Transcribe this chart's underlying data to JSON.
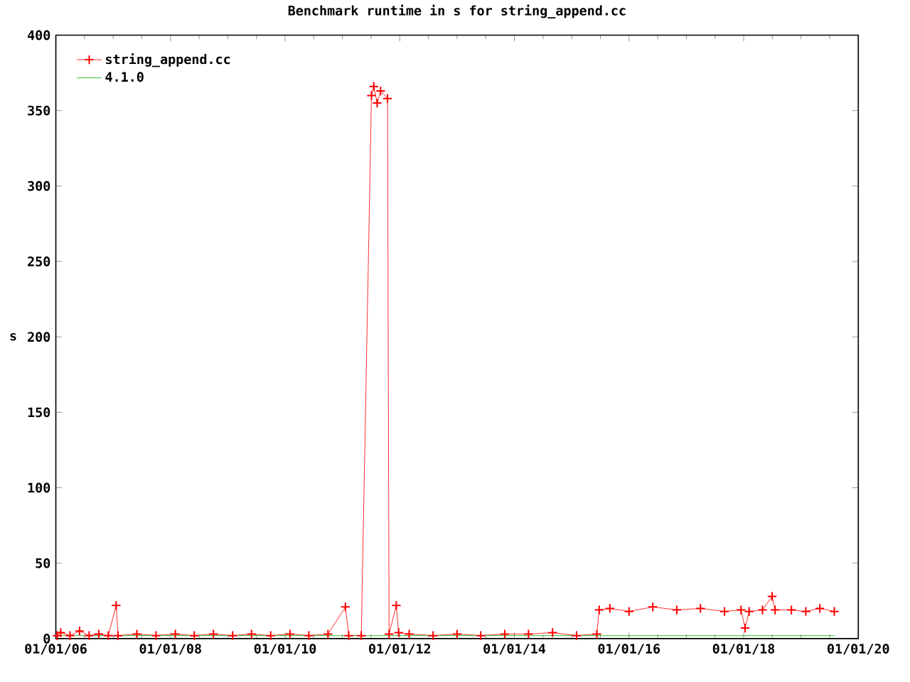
{
  "chart_data": {
    "type": "line",
    "title": "Benchmark runtime in s for string_append.cc",
    "ylabel": "s",
    "legend": "top left",
    "grid": false,
    "xlim": [
      "2006-01-01",
      "2020-01-01"
    ],
    "xticks": [
      {
        "value": "2006-01-01",
        "label": "01/01/06"
      },
      {
        "value": "2008-01-01",
        "label": "01/01/08"
      },
      {
        "value": "2010-01-01",
        "label": "01/01/10"
      },
      {
        "value": "2012-01-01",
        "label": "01/01/12"
      },
      {
        "value": "2014-01-01",
        "label": "01/01/14"
      },
      {
        "value": "2016-01-01",
        "label": "01/01/16"
      },
      {
        "value": "2018-01-01",
        "label": "01/01/18"
      },
      {
        "value": "2020-01-01",
        "label": "01/01/20"
      }
    ],
    "ylim": [
      0,
      400
    ],
    "yticks": [
      0,
      50,
      100,
      150,
      200,
      250,
      300,
      350,
      400
    ],
    "series": [
      {
        "name": "string_append.cc",
        "color": "#ff0000",
        "marker": "cross",
        "x": [
          "2006-01-10",
          "2006-02-01",
          "2006-04-01",
          "2006-06-01",
          "2006-08-01",
          "2006-10-01",
          "2006-12-01",
          "2007-01-20",
          "2007-02-01",
          "2007-06-01",
          "2007-10-01",
          "2008-02-01",
          "2008-06-01",
          "2008-10-01",
          "2009-02-01",
          "2009-06-01",
          "2009-10-01",
          "2010-02-01",
          "2010-06-01",
          "2010-10-01",
          "2011-01-20",
          "2011-02-10",
          "2011-05-01",
          "2011-07-05",
          "2011-07-20",
          "2011-08-10",
          "2011-09-01",
          "2011-10-15",
          "2011-10-25",
          "2011-12-10",
          "2011-12-25",
          "2012-03-01",
          "2012-08-01",
          "2013-01-01",
          "2013-06-01",
          "2013-11-01",
          "2014-04-01",
          "2014-09-01",
          "2015-02-01",
          "2015-06-10",
          "2015-06-25",
          "2015-09-01",
          "2016-01-01",
          "2016-06-01",
          "2016-11-01",
          "2017-04-01",
          "2017-09-01",
          "2017-12-15",
          "2018-01-10",
          "2018-02-05",
          "2018-05-01",
          "2018-07-01",
          "2018-07-20",
          "2018-11-01",
          "2019-02-01",
          "2019-05-01",
          "2019-08-01"
        ],
        "values": [
          2,
          4,
          2,
          5,
          2,
          3,
          2,
          22,
          2,
          3,
          2,
          3,
          2,
          3,
          2,
          3,
          2,
          3,
          2,
          3,
          21,
          2,
          2,
          360,
          366,
          355,
          363,
          358,
          3,
          22,
          4,
          3,
          2,
          3,
          2,
          3,
          3,
          4,
          2,
          3,
          19,
          20,
          18,
          21,
          19,
          20,
          18,
          19,
          7,
          18,
          19,
          28,
          19,
          19,
          18,
          20,
          18
        ]
      },
      {
        "name": "4.1.0",
        "color": "#00b000",
        "marker": "none",
        "x": [
          "2006-01-10",
          "2019-08-01"
        ],
        "values": [
          2,
          2
        ]
      }
    ]
  }
}
